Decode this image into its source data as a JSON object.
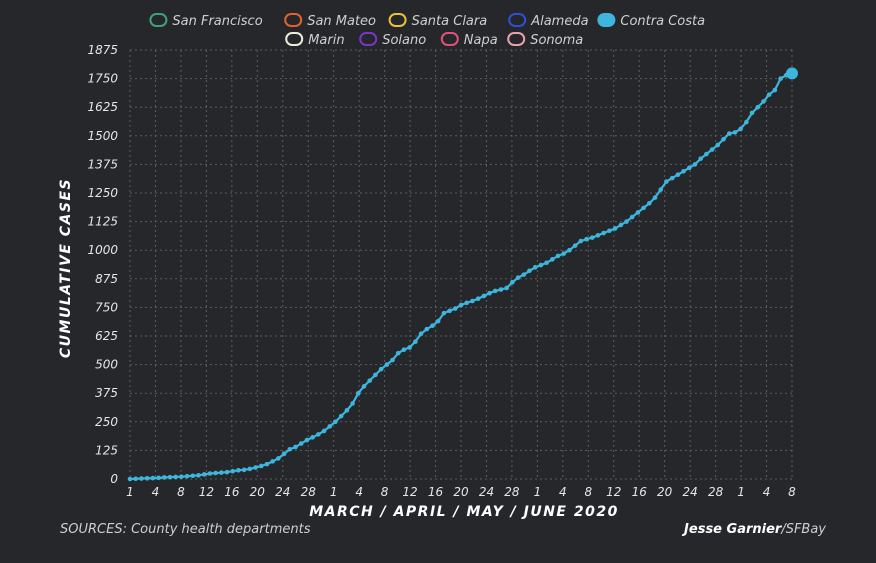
{
  "legend": [
    {
      "name": "San Francisco",
      "color": "#3fa37a",
      "filled": false
    },
    {
      "name": "San Mateo",
      "color": "#e0622f",
      "filled": false
    },
    {
      "name": "Santa Clara",
      "color": "#e8c23c",
      "filled": false
    },
    {
      "name": "Alameda",
      "color": "#2f4fd8",
      "filled": false
    },
    {
      "name": "Contra Costa",
      "color": "#3db5dc",
      "filled": true
    },
    {
      "name": "Marin",
      "color": "#e8ecd8",
      "filled": false
    },
    {
      "name": "Solano",
      "color": "#7a35c8",
      "filled": false
    },
    {
      "name": "Napa",
      "color": "#e0507a",
      "filled": false
    },
    {
      "name": "Sonoma",
      "color": "#e8a0aa",
      "filled": false
    }
  ],
  "chart_data": {
    "type": "line",
    "xlabel": "MARCH / APRIL / MAY / JUNE 2020",
    "ylabel": "CUMULATIVE CASES",
    "ylim": [
      0,
      1875
    ],
    "yticks": [
      0,
      125,
      250,
      375,
      500,
      625,
      750,
      875,
      1000,
      1125,
      1250,
      1375,
      1500,
      1625,
      1750,
      1875
    ],
    "xticks": [
      "1",
      "4",
      "8",
      "12",
      "16",
      "20",
      "24",
      "28",
      "1",
      "4",
      "8",
      "12",
      "16",
      "20",
      "24",
      "28",
      "1",
      "4",
      "8",
      "12",
      "16",
      "20",
      "24",
      "28",
      "1",
      "4",
      "8"
    ],
    "grid": true,
    "series": [
      {
        "name": "Contra Costa",
        "color": "#3db5dc",
        "x_start": "2020-03-01",
        "x_end": "2020-06-08",
        "values": [
          0,
          1,
          2,
          3,
          4,
          5,
          7,
          8,
          9,
          10,
          12,
          14,
          16,
          20,
          24,
          26,
          28,
          30,
          34,
          38,
          40,
          44,
          50,
          57,
          65,
          77,
          90,
          110,
          130,
          140,
          155,
          170,
          182,
          195,
          210,
          230,
          250,
          275,
          300,
          330,
          375,
          405,
          430,
          455,
          480,
          500,
          520,
          550,
          565,
          575,
          600,
          635,
          655,
          670,
          690,
          725,
          735,
          745,
          760,
          770,
          778,
          788,
          800,
          812,
          822,
          828,
          835,
          860,
          880,
          893,
          910,
          925,
          935,
          945,
          960,
          975,
          985,
          1000,
          1020,
          1040,
          1048,
          1055,
          1065,
          1075,
          1085,
          1095,
          1110,
          1125,
          1145,
          1165,
          1185,
          1205,
          1230,
          1265,
          1300,
          1315,
          1330,
          1345,
          1360,
          1375,
          1400,
          1420,
          1440,
          1460,
          1485,
          1510,
          1515,
          1530,
          1560,
          1600,
          1625,
          1650,
          1680,
          1700,
          1750,
          1765,
          1773
        ]
      }
    ]
  },
  "footer": {
    "source": "SOURCES: County health departments",
    "author": "Jesse Garnier",
    "outlet": "/SFBay"
  }
}
